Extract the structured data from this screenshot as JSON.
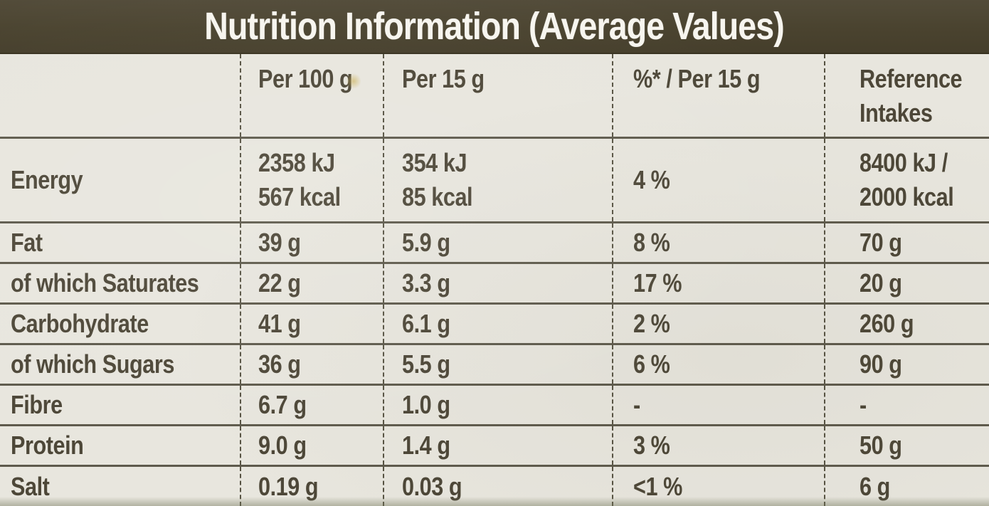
{
  "table": {
    "title": "Nutrition Information (Average Values)",
    "columns": [
      "",
      "Per 100 g",
      "Per 15 g",
      "%* / Per 15 g",
      "Reference\nIntakes"
    ],
    "rows": [
      {
        "label": "Energy",
        "per_100g": "2358 kJ\n567 kcal",
        "per_15g": "354 kJ\n85 kcal",
        "pct_per_15g": "4 %",
        "reference_intake": "8400 kJ /\n2000 kcal"
      },
      {
        "label": "Fat",
        "per_100g": "39 g",
        "per_15g": "5.9 g",
        "pct_per_15g": "8 %",
        "reference_intake": "70 g"
      },
      {
        "label": "of which Saturates",
        "per_100g": "22 g",
        "per_15g": "3.3 g",
        "pct_per_15g": "17 %",
        "reference_intake": "20 g"
      },
      {
        "label": "Carbohydrate",
        "per_100g": "41 g",
        "per_15g": "6.1 g",
        "pct_per_15g": "2 %",
        "reference_intake": "260 g"
      },
      {
        "label": "of which Sugars",
        "per_100g": "36 g",
        "per_15g": "5.5 g",
        "pct_per_15g": "6 %",
        "reference_intake": "90 g"
      },
      {
        "label": "Fibre",
        "per_100g": "6.7 g",
        "per_15g": "1.0 g",
        "pct_per_15g": "-",
        "reference_intake": "-"
      },
      {
        "label": "Protein",
        "per_100g": "9.0 g",
        "per_15g": "1.4 g",
        "pct_per_15g": "3 %",
        "reference_intake": "50 g"
      },
      {
        "label": "Salt",
        "per_100g": "0.19 g",
        "per_15g": "0.03 g",
        "pct_per_15g": "<1 %",
        "reference_intake": "6 g"
      }
    ]
  },
  "colors": {
    "header_band": "#4a432f",
    "body_background": "#e8e6de",
    "ink": "#4d4738",
    "grid_line": "#46412f",
    "title_text": "#f7f5ef"
  }
}
